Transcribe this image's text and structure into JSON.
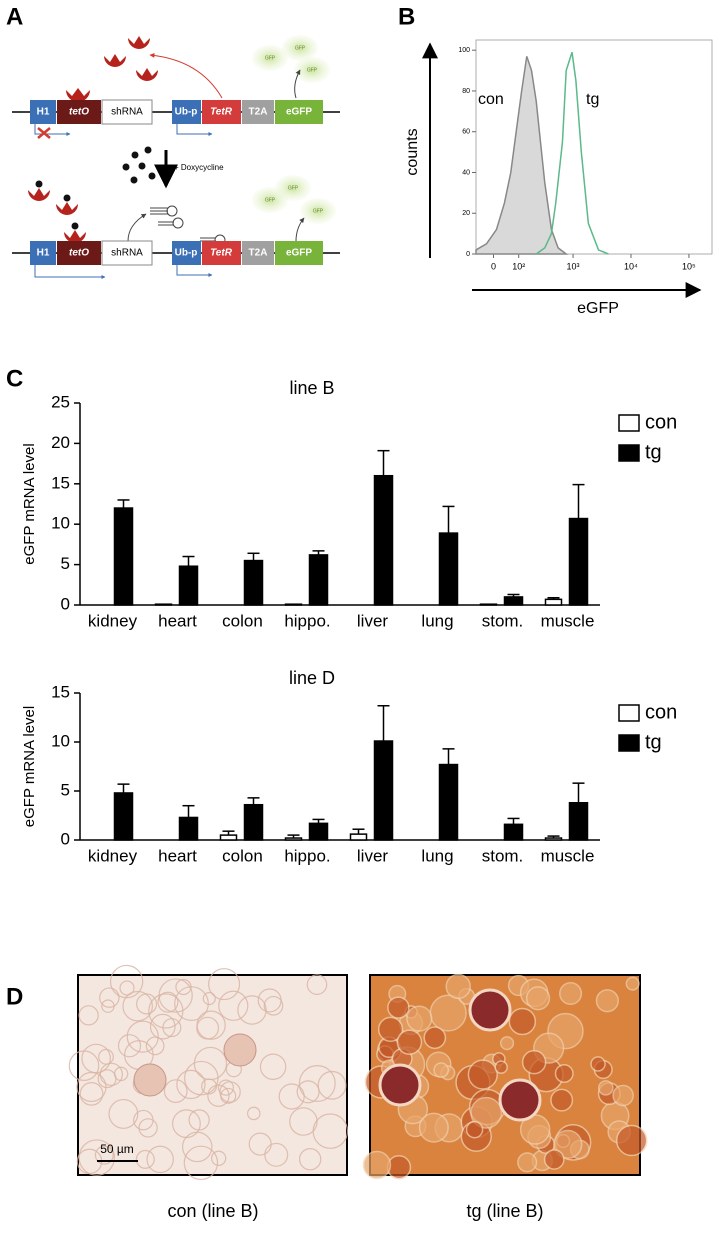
{
  "panel_labels": [
    "A",
    "B",
    "C",
    "D"
  ],
  "diagram": {
    "top": {
      "h1": "H1",
      "teto": "tetO",
      "shrna": "shRNA",
      "ubp": "Ub-p",
      "tetr": "TetR",
      "t2a": "T2A",
      "egfp": "eGFP",
      "gfp": [
        "GFP",
        "GFP",
        "GFP"
      ]
    },
    "drug": "+ Doxycycline",
    "bottom": {
      "h1": "H1",
      "teto": "tetO",
      "shrna": "shRNA",
      "ubp": "Ub-p",
      "tetr": "TetR",
      "t2a": "T2A",
      "egfp": "eGFP",
      "gfp": [
        "GFP",
        "GFP",
        "GFP"
      ]
    }
  },
  "chart_data": [
    {
      "type": "line",
      "xlabel": "eGFP",
      "ylabel": "counts",
      "xscale": "asinh",
      "xlim": [
        -64,
        250000
      ],
      "xticks": [
        0,
        {
          "value": 100,
          "label": "10²"
        },
        {
          "value": 1000,
          "label": "10³"
        },
        {
          "value": 10000,
          "label": "10⁴"
        },
        {
          "value": 100000,
          "label": "10⁵"
        }
      ],
      "ylim": [
        0,
        105
      ],
      "yticks": [
        0,
        20,
        40,
        60,
        80,
        100
      ],
      "series": [
        {
          "name": "con",
          "color": "#888888",
          "fill": "#d9d9d9",
          "x": [
            -64,
            -24,
            10,
            38,
            63,
            90,
            116,
            148,
            183,
            224,
            320,
            420,
            550,
            760
          ],
          "values": [
            2,
            5,
            12,
            25,
            40,
            62,
            80,
            97,
            90,
            75,
            35,
            12,
            3,
            0
          ]
        },
        {
          "name": "tg",
          "color": "#5bb98a",
          "x": [
            224,
            320,
            420,
            500,
            655,
            760,
            960,
            1120,
            1390,
            1840,
            2750,
            4080
          ],
          "values": [
            0,
            3,
            10,
            25,
            55,
            90,
            99,
            85,
            50,
            15,
            2,
            0
          ]
        }
      ]
    },
    {
      "type": "bar",
      "title": "line B",
      "ylabel": "eGFP mRNA level",
      "categories": [
        "kidney",
        "heart",
        "colon",
        "hippo.",
        "liver",
        "lung",
        "stom.",
        "muscle"
      ],
      "ylim": [
        0,
        25
      ],
      "yticks": [
        0,
        5,
        10,
        15,
        20,
        25
      ],
      "series": [
        {
          "name": "con",
          "color": "#ffffff",
          "values": [
            0,
            0.1,
            0,
            0.1,
            0,
            0,
            0.1,
            0.7
          ],
          "errors": [
            0,
            0,
            0,
            0,
            0,
            0,
            0,
            0.2
          ]
        },
        {
          "name": "tg",
          "color": "#000000",
          "values": [
            12.0,
            4.8,
            5.5,
            6.2,
            16.0,
            8.9,
            1.0,
            10.7
          ],
          "errors": [
            1.0,
            1.2,
            0.9,
            0.5,
            3.1,
            3.3,
            0.3,
            4.2
          ]
        }
      ]
    },
    {
      "type": "bar",
      "title": "line D",
      "ylabel": "eGFP mRNA level",
      "categories": [
        "kidney",
        "heart",
        "colon",
        "hippo.",
        "liver",
        "lung",
        "stom.",
        "muscle"
      ],
      "ylim": [
        0,
        15
      ],
      "yticks": [
        0,
        5,
        10,
        15
      ],
      "series": [
        {
          "name": "con",
          "color": "#ffffff",
          "values": [
            0,
            0,
            0.5,
            0.2,
            0.6,
            0,
            0,
            0.2
          ],
          "errors": [
            0,
            0,
            0.4,
            0.3,
            0.5,
            0,
            0,
            0.2
          ]
        },
        {
          "name": "tg",
          "color": "#000000",
          "values": [
            4.8,
            2.3,
            3.6,
            1.7,
            10.1,
            7.7,
            1.6,
            3.8
          ],
          "errors": [
            0.9,
            1.2,
            0.7,
            0.4,
            3.6,
            1.6,
            0.6,
            2.0
          ]
        }
      ]
    }
  ],
  "micrographs": {
    "scale_bar": "50 µm",
    "captions": [
      "con (line B)",
      "tg (line B)"
    ]
  }
}
